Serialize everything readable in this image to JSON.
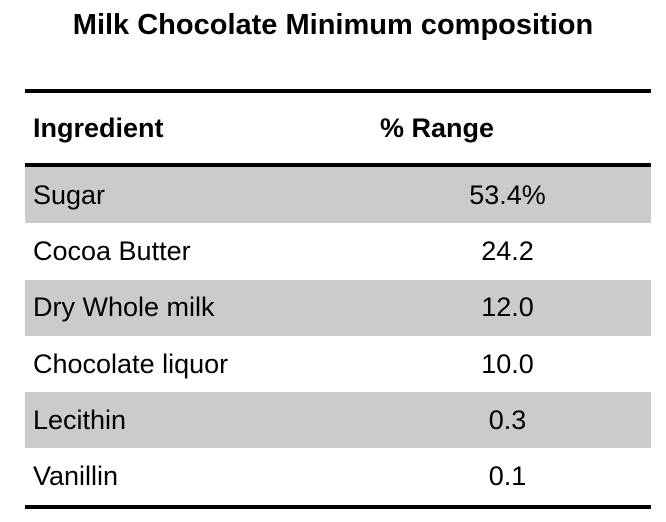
{
  "title": "Milk Chocolate Minimum composition",
  "table": {
    "headers": {
      "ingredient": "Ingredient",
      "range": "% Range"
    },
    "rows": [
      {
        "ingredient": "Sugar",
        "range": "53.4%"
      },
      {
        "ingredient": "Cocoa Butter",
        "range": "24.2"
      },
      {
        "ingredient": "Dry Whole milk",
        "range": "12.0"
      },
      {
        "ingredient": "Chocolate liquor",
        "range": "10.0"
      },
      {
        "ingredient": "Lecithin",
        "range": "0.3"
      },
      {
        "ingredient": "Vanillin",
        "range": "0.1"
      }
    ],
    "banding_color": "#CBCBCB",
    "rule_color": "#000000",
    "text_color": "#000000",
    "background_color": "#FFFFFF"
  },
  "chart_data": {
    "type": "table",
    "title": "Milk Chocolate Minimum composition",
    "columns": [
      "Ingredient",
      "% Range"
    ],
    "rows": [
      [
        "Sugar",
        "53.4%"
      ],
      [
        "Cocoa Butter",
        "24.2"
      ],
      [
        "Dry Whole milk",
        "12.0"
      ],
      [
        "Chocolate liquor",
        "10.0"
      ],
      [
        "Lecithin",
        "0.3"
      ],
      [
        "Vanillin",
        "0.1"
      ]
    ],
    "values_numeric": [
      53.4,
      24.2,
      12.0,
      10.0,
      0.3,
      0.1
    ],
    "layout_hints": {
      "banded_rows": "odd rows shaded gray",
      "value_alignment": "center",
      "rules": "horizontal only: above header, below header, below last row"
    }
  }
}
